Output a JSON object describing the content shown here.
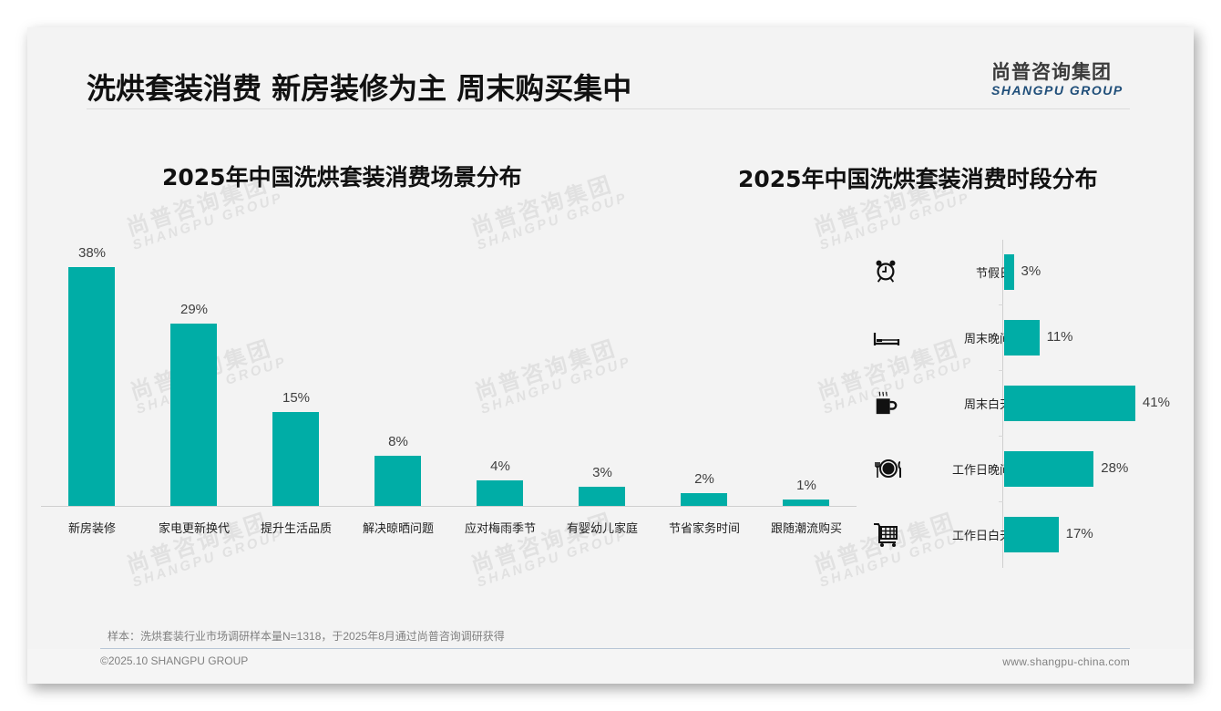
{
  "header": {
    "title": "洗烘套装消费 新房装修为主 周末购买集中",
    "logo_cn": "尚普咨询集团",
    "logo_en": "SHANGPU GROUP"
  },
  "watermark": {
    "cn": "尚普咨询集团",
    "en": "SHANGPU GROUP"
  },
  "colors": {
    "bar": "#00ada6",
    "background": "#f3f3f3",
    "title": "#111111",
    "logo_en": "#1f4e79"
  },
  "chart_data": [
    {
      "type": "bar",
      "orientation": "vertical",
      "title": "2025年中国洗烘套装消费场景分布",
      "categories": [
        "新房装修",
        "家电更新换代",
        "提升生活品质",
        "解决晾晒问题",
        "应对梅雨季节",
        "有婴幼儿家庭",
        "节省家务时间",
        "跟随潮流购买"
      ],
      "values": [
        38,
        29,
        15,
        8,
        4,
        3,
        2,
        1
      ],
      "labels": [
        "38%",
        "29%",
        "15%",
        "8%",
        "4%",
        "3%",
        "2%",
        "1%"
      ],
      "unit": "%",
      "xlabel": "",
      "ylabel": "",
      "ylim": [
        0,
        40
      ],
      "grid": false,
      "legend": "none"
    },
    {
      "type": "bar",
      "orientation": "horizontal",
      "title": "2025年中国洗烘套装消费时段分布",
      "categories": [
        "节假日",
        "周末晚间",
        "周末白天",
        "工作日晚间",
        "工作日白天"
      ],
      "icons": [
        "alarm-clock-icon",
        "bed-icon",
        "coffee-cup-icon",
        "dinner-plate-icon",
        "shopping-cart-icon"
      ],
      "values": [
        3,
        11,
        41,
        28,
        17
      ],
      "labels": [
        "3%",
        "11%",
        "41%",
        "28%",
        "17%"
      ],
      "unit": "%",
      "xlabel": "",
      "ylabel": "",
      "xlim": [
        0,
        45
      ],
      "grid": false,
      "legend": "none"
    }
  ],
  "footer": {
    "note": "样本：洗烘套装行业市场调研样本量N=1318，于2025年8月通过尚普咨询调研获得",
    "copyright": "©2025.10 SHANGPU GROUP",
    "website": "www.shangpu-china.com"
  }
}
